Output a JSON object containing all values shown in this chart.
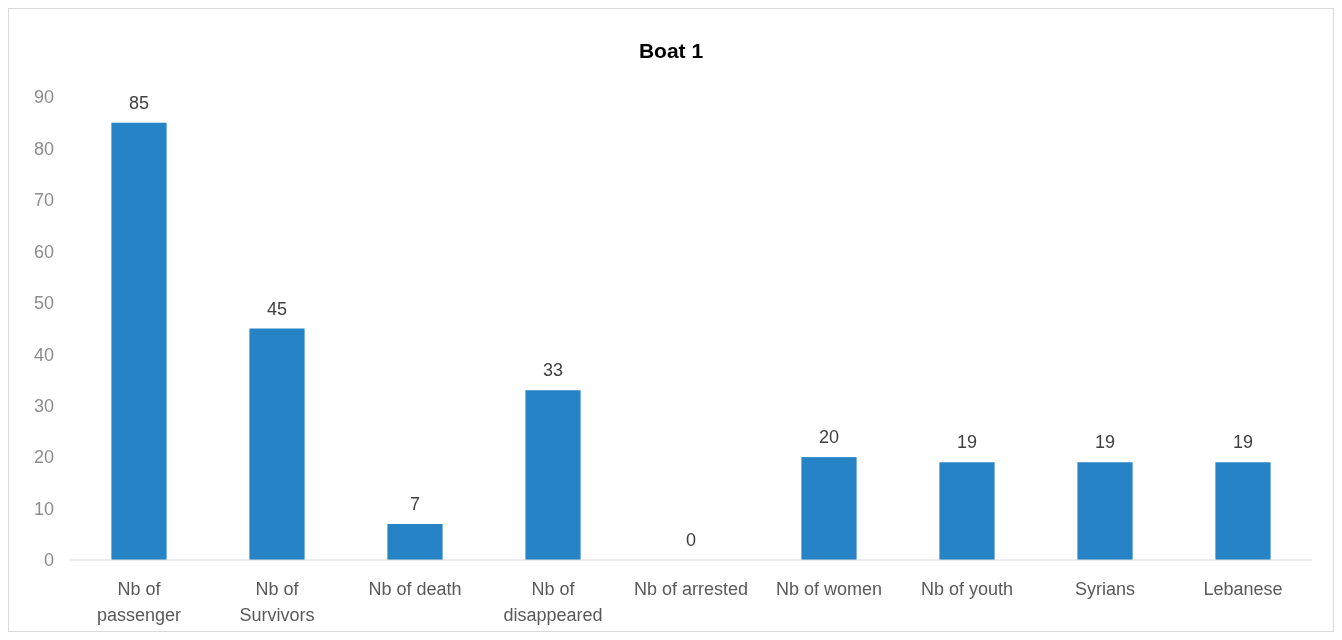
{
  "chart_data": {
    "type": "bar",
    "title": "Boat 1",
    "categories": [
      "Nb of passenger",
      "Nb of Survivors",
      "Nb of death",
      "Nb of disappeared",
      "Nb of arrested",
      "Nb of women",
      "Nb of youth",
      "Syrians",
      "Lebanese"
    ],
    "values": [
      85,
      45,
      7,
      33,
      0,
      20,
      19,
      19,
      19
    ],
    "color": "#2683c6",
    "ylim": [
      0,
      90
    ],
    "yticks": [
      0,
      10,
      20,
      30,
      40,
      50,
      60,
      70,
      80,
      90
    ],
    "grid": false,
    "data_labels": true
  }
}
